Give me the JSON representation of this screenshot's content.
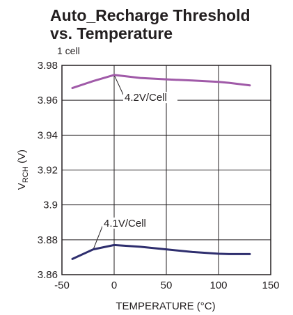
{
  "chart_data": {
    "type": "line",
    "title_line1": "Auto_Recharge Threshold",
    "title_line2": "vs. Temperature",
    "subtitle": "1 cell",
    "xlabel": "TEMPERATURE (°C)",
    "ylabel_main": "V",
    "ylabel_sub": "RCH",
    "ylabel_unit": " (V)",
    "xlim": [
      -50,
      150
    ],
    "ylim": [
      3.86,
      3.98
    ],
    "xticks": [
      -50,
      0,
      50,
      100,
      150
    ],
    "xtick_labels": [
      "-50",
      "0",
      "50",
      "100",
      "150"
    ],
    "yticks": [
      3.86,
      3.88,
      3.9,
      3.92,
      3.94,
      3.96,
      3.98
    ],
    "ytick_labels": [
      "3.86",
      "3.88",
      "3.9",
      "3.92",
      "3.94",
      "3.96",
      "3.98"
    ],
    "grid": true,
    "series": [
      {
        "name": "4.2V/Cell",
        "color": "#a05aa8",
        "x": [
          -40,
          -20,
          0,
          25,
          50,
          75,
          100,
          110,
          130
        ],
        "y": [
          3.967,
          3.971,
          3.9745,
          3.9728,
          3.972,
          3.9713,
          3.9705,
          3.97,
          3.9685
        ]
      },
      {
        "name": "4.1V/Cell",
        "color": "#2e2e6e",
        "x": [
          -40,
          -20,
          0,
          25,
          50,
          75,
          100,
          110,
          130
        ],
        "y": [
          3.869,
          3.8745,
          3.877,
          3.876,
          3.8745,
          3.873,
          3.872,
          3.8718,
          3.8718
        ]
      }
    ],
    "annotations": [
      {
        "text": "4.2V/Cell",
        "series": 0,
        "at_x": 0,
        "label_x": 10,
        "label_y": 3.96
      },
      {
        "text": "4.1V/Cell",
        "series": 1,
        "at_x": -20,
        "label_x": -10,
        "label_y": 3.888
      }
    ]
  }
}
